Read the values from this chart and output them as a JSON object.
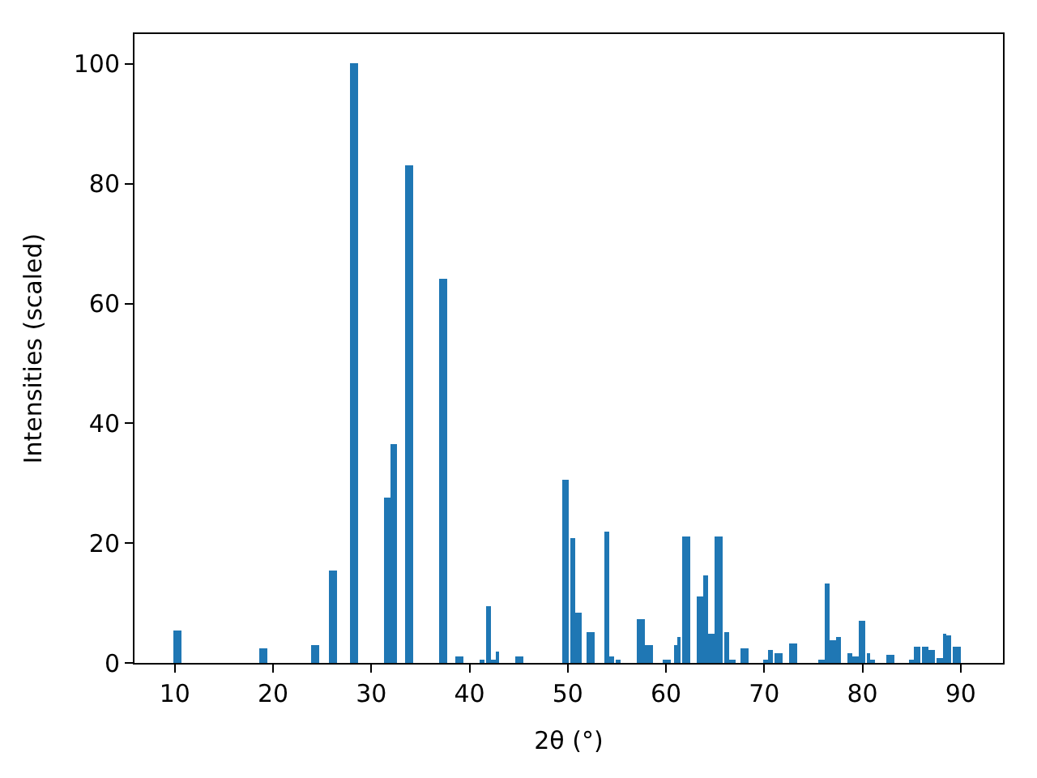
{
  "chart_data": {
    "type": "bar",
    "xlabel": "2θ (°)",
    "ylabel": "Intensities (scaled)",
    "x": [
      10.25,
      19.0,
      24.3,
      26.1,
      28.2,
      31.7,
      32.35,
      33.8,
      37.3,
      38.95,
      41.3,
      41.9,
      42.4,
      42.8,
      45.05,
      49.8,
      50.5,
      51.1,
      52.4,
      54.0,
      54.5,
      55.1,
      57.4,
      58.25,
      60.1,
      61.0,
      61.3,
      62.05,
      63.45,
      64.0,
      64.6,
      65.35,
      66.2,
      66.75,
      68.0,
      70.1,
      70.6,
      71.4,
      72.9,
      75.8,
      76.4,
      77.0,
      77.55,
      78.7,
      79.3,
      80.0,
      80.6,
      81.0,
      82.8,
      85.0,
      85.6,
      86.4,
      87.0,
      87.85,
      88.4,
      88.8,
      89.6
    ],
    "values": [
      5.4,
      2.4,
      3.0,
      15.4,
      100,
      27.6,
      36.5,
      83.2,
      64.2,
      1.1,
      0.3,
      9.5,
      0.5,
      1.9,
      1.1,
      30.6,
      20.9,
      8.4,
      5.1,
      22.0,
      1.1,
      0.3,
      7.3,
      3.0,
      0.3,
      3.0,
      4.3,
      21.1,
      11.1,
      14.6,
      5.0,
      21.1,
      5.2,
      0.5,
      2.4,
      0.3,
      2.2,
      1.6,
      3.2,
      0.5,
      13.3,
      3.8,
      4.3,
      1.6,
      1.1,
      7.0,
      1.6,
      0.3,
      1.4,
      0.3,
      2.7,
      2.7,
      2.2,
      0.8,
      4.9,
      4.6,
      2.7
    ],
    "color": "#1f77b4",
    "xlim": [
      5.9,
      94.3
    ],
    "xticks": [
      10,
      20,
      30,
      40,
      50,
      60,
      70,
      80,
      90
    ],
    "ylim": [
      0,
      105
    ],
    "yticks": [
      0,
      20,
      40,
      60,
      80,
      100
    ]
  }
}
